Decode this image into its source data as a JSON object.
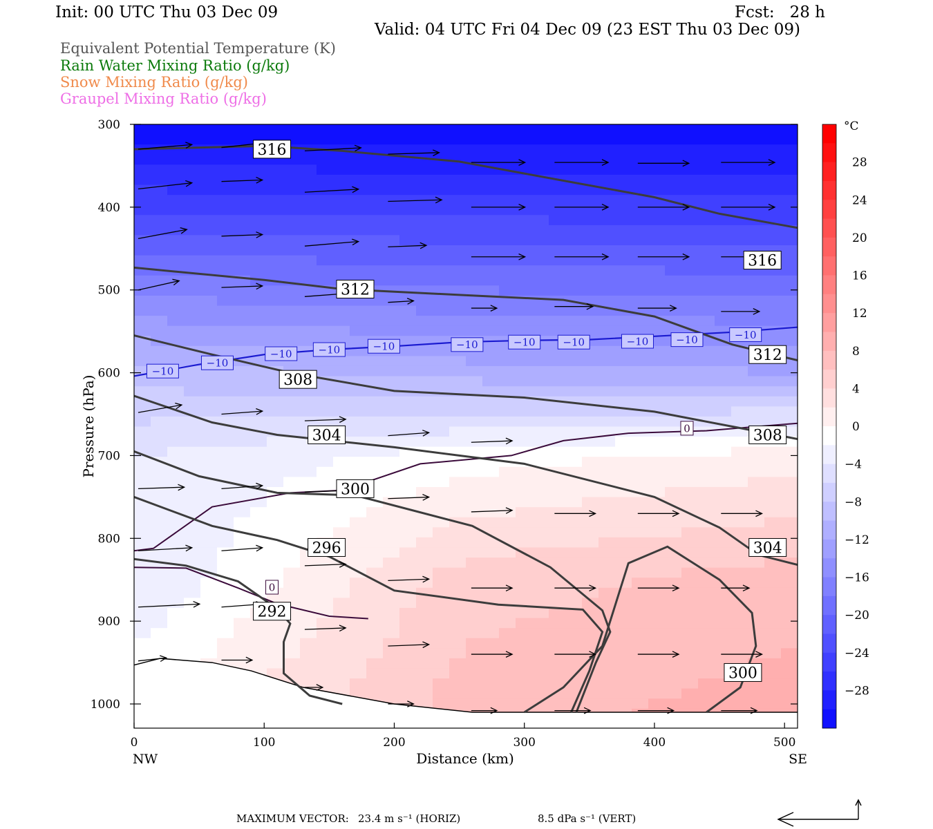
{
  "header": {
    "init": "Init: 00 UTC Thu 03 Dec 09",
    "fcst": "Fcst:   28 h",
    "valid": "Valid: 04 UTC Fri 04 Dec 09 (23 EST Thu 03 Dec 09)"
  },
  "legend": [
    {
      "label": "Equivalent Potential Temperature (K)",
      "color": "#555555"
    },
    {
      "label": "Rain Water Mixing Ratio (g/kg)",
      "color": "#0b7a0b"
    },
    {
      "label": "Snow Mixing Ratio (g/kg)",
      "color": "#f08a4b"
    },
    {
      "label": "Graupel Mixing Ratio (g/kg)",
      "color": "#ee6ee6"
    }
  ],
  "footer": {
    "label": "MAXIMUM VECTOR:",
    "horiz": "23.4 m s⁻¹ (HORIZ)",
    "vert": "8.5 dPa s⁻¹ (VERT)"
  },
  "chart_data": {
    "type": "cross-section",
    "xlabel": "Distance (km)",
    "ylabel": "Pressure (hPa)",
    "xlim": [
      0,
      510
    ],
    "ylim": [
      1030,
      300
    ],
    "xticks": [
      0,
      100,
      200,
      300,
      400,
      500
    ],
    "yticks": [
      300,
      400,
      500,
      600,
      700,
      800,
      900,
      1000
    ],
    "x_end_labels": {
      "left": "NW",
      "right": "SE"
    },
    "colorbar": {
      "unit": "°C",
      "ticks": [
        28,
        24,
        20,
        16,
        12,
        8,
        4,
        0,
        -4,
        -8,
        -12,
        -16,
        -20,
        -24,
        -28
      ],
      "range": [
        -32,
        32
      ],
      "cold_color": "#0000ff",
      "warm_color": "#ff0000"
    },
    "temperature_field": {
      "note_levels": [
        {
          "p": 300,
          "temps": [
            -31,
            -31,
            -31
          ]
        },
        {
          "p": 600,
          "temps": [
            -8,
            -10,
            -11
          ]
        },
        {
          "p": 700,
          "temps": [
            -3,
            0,
            2
          ]
        },
        {
          "p": 850,
          "temps": [
            -3,
            6,
            8
          ]
        },
        {
          "p": 1010,
          "temps": [
            1,
            8,
            10
          ]
        }
      ]
    },
    "theta_e_contours": [
      {
        "value": 316,
        "points": [
          [
            0,
            330
          ],
          [
            100,
            326
          ],
          [
            160,
            332
          ],
          [
            250,
            345
          ],
          [
            330,
            368
          ],
          [
            400,
            388
          ],
          [
            450,
            408
          ],
          [
            510,
            425
          ]
        ],
        "labels": [
          [
            106,
            330
          ],
          [
            483,
            464
          ]
        ]
      },
      {
        "value": 312,
        "points": [
          [
            0,
            473
          ],
          [
            100,
            488
          ],
          [
            160,
            499
          ],
          [
            250,
            506
          ],
          [
            330,
            512
          ],
          [
            400,
            532
          ],
          [
            460,
            566
          ],
          [
            510,
            585
          ]
        ],
        "labels": [
          [
            170,
            499
          ],
          [
            487,
            578
          ]
        ]
      },
      {
        "value": 308,
        "points": [
          [
            0,
            555
          ],
          [
            60,
            578
          ],
          [
            120,
            600
          ],
          [
            200,
            622
          ],
          [
            300,
            630
          ],
          [
            400,
            647
          ],
          [
            460,
            665
          ],
          [
            510,
            680
          ]
        ],
        "labels": [
          [
            126,
            608
          ],
          [
            487,
            675
          ]
        ]
      },
      {
        "value": 304,
        "points": [
          [
            0,
            628
          ],
          [
            60,
            660
          ],
          [
            110,
            675
          ],
          [
            200,
            690
          ],
          [
            300,
            710
          ],
          [
            400,
            750
          ],
          [
            450,
            787
          ],
          [
            480,
            820
          ],
          [
            510,
            832
          ]
        ],
        "labels": [
          [
            148,
            675
          ],
          [
            487,
            811
          ]
        ]
      },
      {
        "value": 300,
        "points": [
          [
            0,
            695
          ],
          [
            50,
            725
          ],
          [
            110,
            745
          ],
          [
            170,
            748
          ],
          [
            260,
            785
          ],
          [
            320,
            835
          ],
          [
            360,
            887
          ],
          [
            366,
            913
          ],
          [
            355,
            950
          ],
          [
            340,
            1010
          ]
        ],
        "labels": [
          [
            170,
            740
          ]
        ]
      },
      {
        "value": 296,
        "points": [
          [
            0,
            750
          ],
          [
            60,
            785
          ],
          [
            110,
            802
          ],
          [
            150,
            822
          ],
          [
            200,
            863
          ],
          [
            280,
            880
          ],
          [
            345,
            886
          ],
          [
            360,
            913
          ],
          [
            350,
            960
          ],
          [
            336,
            1010
          ]
        ],
        "labels": [
          [
            148,
            811
          ]
        ]
      },
      {
        "value": 292,
        "points": [
          [
            0,
            825
          ],
          [
            40,
            833
          ],
          [
            80,
            852
          ],
          [
            110,
            885
          ],
          [
            120,
            903
          ],
          [
            115,
            925
          ],
          [
            115,
            963
          ],
          [
            135,
            990
          ],
          [
            160,
            1000
          ]
        ],
        "labels": [
          [
            106,
            888
          ]
        ]
      },
      {
        "value": 300,
        "points": [
          [
            300,
            1010
          ],
          [
            330,
            980
          ],
          [
            360,
            930
          ],
          [
            380,
            830
          ],
          [
            410,
            810
          ],
          [
            450,
            850
          ],
          [
            475,
            890
          ],
          [
            478,
            930
          ],
          [
            466,
            980
          ],
          [
            440,
            1010
          ]
        ],
        "labels": [
          [
            468,
            962
          ]
        ]
      }
    ],
    "zero_isotherm": [
      {
        "points": [
          [
            0,
            815
          ],
          [
            15,
            812
          ],
          [
            60,
            762
          ],
          [
            120,
            745
          ],
          [
            160,
            742
          ],
          [
            220,
            710
          ],
          [
            290,
            700
          ],
          [
            330,
            682
          ],
          [
            380,
            673
          ],
          [
            440,
            670
          ],
          [
            510,
            661
          ]
        ],
        "labels": [
          [
            425,
            667
          ]
        ]
      },
      {
        "points": [
          [
            0,
            835
          ],
          [
            40,
            836
          ],
          [
            80,
            860
          ],
          [
            110,
            879
          ],
          [
            150,
            894
          ],
          [
            180,
            897
          ]
        ],
        "labels": [
          [
            106,
            859
          ]
        ]
      }
    ],
    "minus10_isotherm": {
      "points": [
        [
          0,
          604
        ],
        [
          50,
          590
        ],
        [
          100,
          578
        ],
        [
          150,
          572
        ],
        [
          200,
          568
        ],
        [
          250,
          563
        ],
        [
          300,
          561
        ],
        [
          350,
          560
        ],
        [
          400,
          556
        ],
        [
          460,
          551
        ],
        [
          510,
          545
        ]
      ],
      "labels": [
        [
          22,
          598
        ],
        [
          64,
          588
        ],
        [
          113,
          577
        ],
        [
          150,
          572
        ],
        [
          192,
          568
        ],
        [
          256,
          566
        ],
        [
          300,
          563
        ],
        [
          338,
          563
        ],
        [
          387,
          562
        ],
        [
          425,
          560
        ],
        [
          470,
          554
        ]
      ],
      "label": "−10"
    },
    "wind_vectors": [
      {
        "x": 0,
        "p": 330,
        "u": 42,
        "w": -3
      },
      {
        "x": 64,
        "p": 328,
        "u": 32,
        "w": -3
      },
      {
        "x": 128,
        "p": 332,
        "u": 44,
        "w": -2
      },
      {
        "x": 192,
        "p": 336,
        "u": 40,
        "w": -1
      },
      {
        "x": 256,
        "p": 346,
        "u": 42,
        "w": 0
      },
      {
        "x": 320,
        "p": 346,
        "u": 42,
        "w": 0
      },
      {
        "x": 384,
        "p": 347,
        "u": 40,
        "w": 0
      },
      {
        "x": 448,
        "p": 346,
        "u": 42,
        "w": 0
      },
      {
        "x": 0,
        "p": 378,
        "u": 42,
        "w": -4
      },
      {
        "x": 64,
        "p": 369,
        "u": 32,
        "w": -1
      },
      {
        "x": 128,
        "p": 382,
        "u": 42,
        "w": -2
      },
      {
        "x": 192,
        "p": 393,
        "u": 42,
        "w": -1
      },
      {
        "x": 256,
        "p": 400,
        "u": 42,
        "w": 0
      },
      {
        "x": 320,
        "p": 400,
        "u": 42,
        "w": 0
      },
      {
        "x": 384,
        "p": 400,
        "u": 40,
        "w": 0
      },
      {
        "x": 448,
        "p": 400,
        "u": 42,
        "w": 0
      },
      {
        "x": 0,
        "p": 438,
        "u": 38,
        "w": -6
      },
      {
        "x": 64,
        "p": 435,
        "u": 32,
        "w": -1
      },
      {
        "x": 128,
        "p": 447,
        "u": 42,
        "w": -3
      },
      {
        "x": 192,
        "p": 448,
        "u": 30,
        "w": -1
      },
      {
        "x": 256,
        "p": 460,
        "u": 42,
        "w": 0
      },
      {
        "x": 320,
        "p": 460,
        "u": 42,
        "w": 0
      },
      {
        "x": 384,
        "p": 460,
        "u": 40,
        "w": 0
      },
      {
        "x": 448,
        "p": 460,
        "u": 42,
        "w": 0
      },
      {
        "x": 0,
        "p": 500,
        "u": 32,
        "w": -6
      },
      {
        "x": 64,
        "p": 497,
        "u": 32,
        "w": -1
      },
      {
        "x": 128,
        "p": 508,
        "u": 32,
        "w": -2
      },
      {
        "x": 192,
        "p": 515,
        "u": 20,
        "w": -1
      },
      {
        "x": 256,
        "p": 522,
        "u": 20,
        "w": 0
      },
      {
        "x": 320,
        "p": 520,
        "u": 30,
        "w": 0
      },
      {
        "x": 384,
        "p": 522,
        "u": 30,
        "w": 0
      },
      {
        "x": 448,
        "p": 526,
        "u": 30,
        "w": 0
      },
      {
        "x": 0,
        "p": 648,
        "u": 34,
        "w": -5
      },
      {
        "x": 64,
        "p": 650,
        "u": 32,
        "w": -2
      },
      {
        "x": 128,
        "p": 658,
        "u": 32,
        "w": -1
      },
      {
        "x": 192,
        "p": 676,
        "u": 32,
        "w": -2
      },
      {
        "x": 256,
        "p": 684,
        "u": 32,
        "w": -1
      },
      {
        "x": 0,
        "p": 740,
        "u": 36,
        "w": -1
      },
      {
        "x": 64,
        "p": 740,
        "u": 32,
        "w": -2
      },
      {
        "x": 128,
        "p": 744,
        "u": 32,
        "w": -1
      },
      {
        "x": 192,
        "p": 752,
        "u": 32,
        "w": -1
      },
      {
        "x": 256,
        "p": 768,
        "u": 32,
        "w": -1
      },
      {
        "x": 320,
        "p": 770,
        "u": 32,
        "w": 0
      },
      {
        "x": 384,
        "p": 770,
        "u": 32,
        "w": 0
      },
      {
        "x": 448,
        "p": 770,
        "u": 32,
        "w": 0
      },
      {
        "x": 0,
        "p": 815,
        "u": 42,
        "w": -2
      },
      {
        "x": 64,
        "p": 815,
        "u": 32,
        "w": -2
      },
      {
        "x": 128,
        "p": 833,
        "u": 32,
        "w": -1
      },
      {
        "x": 192,
        "p": 851,
        "u": 32,
        "w": -1
      },
      {
        "x": 256,
        "p": 860,
        "u": 32,
        "w": 0
      },
      {
        "x": 320,
        "p": 860,
        "u": 32,
        "w": 0
      },
      {
        "x": 384,
        "p": 860,
        "u": 32,
        "w": 0
      },
      {
        "x": 448,
        "p": 860,
        "u": 22,
        "w": 0
      },
      {
        "x": 0,
        "p": 883,
        "u": 48,
        "w": -2
      },
      {
        "x": 64,
        "p": 883,
        "u": 32,
        "w": -2
      },
      {
        "x": 128,
        "p": 910,
        "u": 32,
        "w": -1
      },
      {
        "x": 192,
        "p": 930,
        "u": 32,
        "w": -1
      },
      {
        "x": 256,
        "p": 940,
        "u": 32,
        "w": 0
      },
      {
        "x": 320,
        "p": 940,
        "u": 32,
        "w": 0
      },
      {
        "x": 384,
        "p": 940,
        "u": 32,
        "w": 0
      },
      {
        "x": 448,
        "p": 940,
        "u": 32,
        "w": 0
      },
      {
        "x": 0,
        "p": 948,
        "u": 22,
        "w": -2
      },
      {
        "x": 64,
        "p": 947,
        "u": 24,
        "w": 0
      },
      {
        "x": 128,
        "p": 980,
        "u": 14,
        "w": 0
      },
      {
        "x": 192,
        "p": 1000,
        "u": 20,
        "w": 0
      },
      {
        "x": 256,
        "p": 1008,
        "u": 20,
        "w": 0
      },
      {
        "x": 320,
        "p": 1008,
        "u": 28,
        "w": 0
      },
      {
        "x": 384,
        "p": 1008,
        "u": 28,
        "w": 0
      },
      {
        "x": 448,
        "p": 1008,
        "u": 28,
        "w": 0
      }
    ],
    "terrain": [
      [
        0,
        953
      ],
      [
        20,
        945
      ],
      [
        60,
        950
      ],
      [
        90,
        960
      ],
      [
        130,
        980
      ],
      [
        200,
        1000
      ],
      [
        260,
        1010
      ],
      [
        300,
        1010
      ],
      [
        510,
        1010
      ]
    ]
  }
}
